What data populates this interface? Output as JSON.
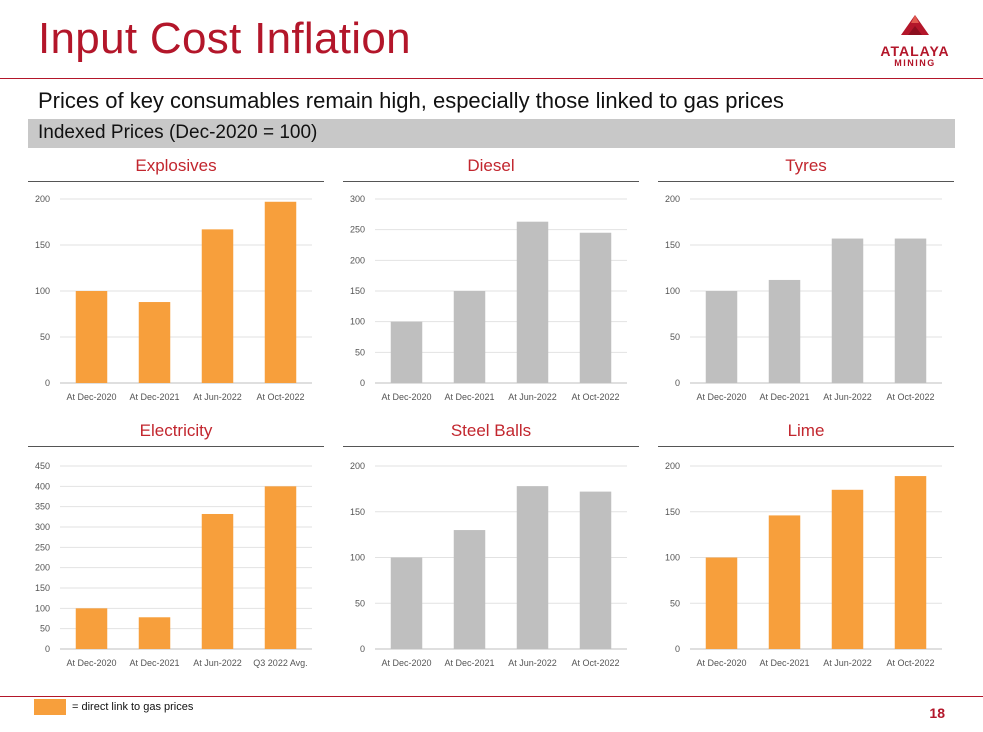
{
  "header": {
    "title": "Input Cost Inflation",
    "logo_name": "ATALAYA",
    "logo_sub": "MINING"
  },
  "subtitle": "Prices of key consumables remain high, especially those linked to gas prices",
  "banner": "Indexed Prices (Dec-2020 = 100)",
  "colors": {
    "orange": "#f79f3c",
    "grey": "#bfbfbf",
    "accent": "#b3162a"
  },
  "chart_data": [
    {
      "type": "bar",
      "title": "Explosives",
      "color": "orange",
      "categories": [
        "At Dec-2020",
        "At Dec-2021",
        "At Jun-2022",
        "At Oct-2022"
      ],
      "values": [
        100,
        88,
        167,
        197
      ],
      "ylim": [
        0,
        200
      ],
      "yticks": [
        0,
        50,
        100,
        150,
        200
      ]
    },
    {
      "type": "bar",
      "title": "Diesel",
      "color": "grey",
      "categories": [
        "At Dec-2020",
        "At Dec-2021",
        "At Jun-2022",
        "At Oct-2022"
      ],
      "values": [
        100,
        150,
        263,
        245
      ],
      "ylim": [
        0,
        300
      ],
      "yticks": [
        0,
        50,
        100,
        150,
        200,
        250,
        300
      ]
    },
    {
      "type": "bar",
      "title": "Tyres",
      "color": "grey",
      "categories": [
        "At Dec-2020",
        "At Dec-2021",
        "At Jun-2022",
        "At Oct-2022"
      ],
      "values": [
        100,
        112,
        157,
        157
      ],
      "ylim": [
        0,
        200
      ],
      "yticks": [
        0,
        50,
        100,
        150,
        200
      ]
    },
    {
      "type": "bar",
      "title": "Electricity",
      "color": "orange",
      "categories": [
        "At Dec-2020",
        "At Dec-2021",
        "At Jun-2022",
        "Q3 2022 Avg."
      ],
      "values": [
        100,
        78,
        332,
        400
      ],
      "ylim": [
        0,
        450
      ],
      "yticks": [
        0,
        50,
        100,
        150,
        200,
        250,
        300,
        350,
        400,
        450
      ]
    },
    {
      "type": "bar",
      "title": "Steel Balls",
      "color": "grey",
      "categories": [
        "At Dec-2020",
        "At Dec-2021",
        "At Jun-2022",
        "At Oct-2022"
      ],
      "values": [
        100,
        130,
        178,
        172
      ],
      "ylim": [
        0,
        200
      ],
      "yticks": [
        0,
        50,
        100,
        150,
        200
      ]
    },
    {
      "type": "bar",
      "title": "Lime",
      "color": "orange",
      "categories": [
        "At Dec-2020",
        "At Dec-2021",
        "At Jun-2022",
        "At Oct-2022"
      ],
      "values": [
        100,
        146,
        174,
        189
      ],
      "ylim": [
        0,
        200
      ],
      "yticks": [
        0,
        50,
        100,
        150,
        200
      ]
    }
  ],
  "legend": {
    "text": "= direct link to gas prices"
  },
  "page_number": "18"
}
